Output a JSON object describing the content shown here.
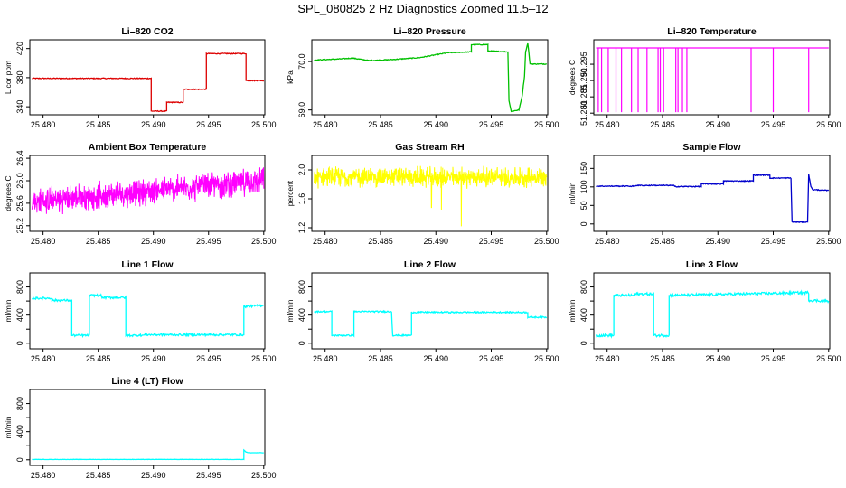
{
  "title": "SPL_080825  2 Hz Diagnostics Zoomed 11.5–12",
  "colors": {
    "red": "#dd0000",
    "green": "#00c000",
    "magenta": "#ff00ff",
    "yellow": "#ffff00",
    "blue": "#0000cc",
    "cyan": "#00ffff"
  },
  "chart_data": [
    {
      "type": "line",
      "title": "Li–820 CO2",
      "ylabel": "Licor ppm",
      "color": "red",
      "xlim": [
        25.4788,
        25.5001
      ],
      "ylim": [
        329,
        432
      ],
      "xticks": [
        25.48,
        25.485,
        25.49,
        25.495,
        25.5
      ],
      "xtick_labels": [
        "25.480",
        "25.485",
        "25.490",
        "25.495",
        "25.500"
      ],
      "yticks": [
        340,
        380,
        420
      ],
      "ytick_labels": [
        "340",
        "380",
        "420"
      ],
      "noise": 0.6,
      "x": [
        25.479,
        25.4898,
        25.4898,
        25.4912,
        25.4912,
        25.4927,
        25.4927,
        25.4948,
        25.4948,
        25.4984,
        25.4984,
        25.5
      ],
      "y": [
        379,
        379,
        334,
        334,
        346,
        346,
        364,
        364,
        413,
        413,
        376,
        376
      ]
    },
    {
      "type": "line",
      "title": "Li–820 Pressure",
      "ylabel": "kPa",
      "color": "green",
      "xlim": [
        25.4788,
        25.5001
      ],
      "ylim": [
        68.9,
        70.45
      ],
      "xticks": [
        25.48,
        25.485,
        25.49,
        25.495,
        25.5
      ],
      "xtick_labels": [
        "25.480",
        "25.485",
        "25.490",
        "25.495",
        "25.500"
      ],
      "yticks": [
        69.0,
        70.0
      ],
      "ytick_labels": [
        "69.0",
        "70.0"
      ],
      "noise": 0.008,
      "x": [
        25.479,
        25.481,
        25.4825,
        25.484,
        25.486,
        25.4885,
        25.4895,
        25.491,
        25.4932,
        25.4932,
        25.4947,
        25.4947,
        25.4965,
        25.4966,
        25.4968,
        25.4975,
        25.4978,
        25.498,
        25.4981,
        25.4983,
        25.4985,
        25.5
      ],
      "y": [
        70.03,
        70.05,
        70.07,
        70.02,
        70.04,
        70.08,
        70.12,
        70.18,
        70.2,
        70.35,
        70.35,
        70.22,
        70.2,
        69.2,
        68.97,
        69.0,
        69.3,
        69.7,
        70.2,
        70.38,
        69.95,
        69.95
      ]
    },
    {
      "type": "line",
      "title": "Li–820 Temperature",
      "ylabel": "degrees C",
      "color": "magenta",
      "xlim": [
        25.4788,
        25.5001
      ],
      "ylim": [
        51.2795,
        51.3025
      ],
      "xticks": [
        25.48,
        25.485,
        25.49,
        25.495,
        25.5
      ],
      "xtick_labels": [
        "25.480",
        "25.485",
        "25.490",
        "25.495",
        "25.500"
      ],
      "yticks": [
        51.28,
        51.285,
        51.29,
        51.295
      ],
      "ytick_labels": [
        "51.280",
        "51.285",
        "51.290",
        "51.295"
      ],
      "noise": 0,
      "x": [
        25.479,
        25.5
      ],
      "y": [
        51.3,
        51.3
      ],
      "spikes_x": [
        25.4792,
        25.4795,
        25.4801,
        25.4808,
        25.4813,
        25.4822,
        25.4828,
        25.4836,
        25.4846,
        25.4848,
        25.4851,
        25.4862,
        25.4864,
        25.4868,
        25.4872,
        25.493,
        25.495,
        25.4982
      ],
      "spike_to": 51.2803
    },
    {
      "type": "line",
      "title": "Ambient Box Temperature",
      "ylabel": "degrees C",
      "color": "magenta",
      "xlim": [
        25.4788,
        25.5001
      ],
      "ylim": [
        25.1,
        26.45
      ],
      "xticks": [
        25.48,
        25.485,
        25.49,
        25.495,
        25.5
      ],
      "xtick_labels": [
        "25.480",
        "25.485",
        "25.490",
        "25.495",
        "25.500"
      ],
      "yticks": [
        25.2,
        25.6,
        26.0,
        26.4
      ],
      "ytick_labels": [
        "25.2",
        "25.6",
        "26.0",
        "26.4"
      ],
      "noise": 0.2,
      "dense": true,
      "x": [
        25.479,
        25.5
      ],
      "y": [
        25.62,
        26.0
      ]
    },
    {
      "type": "line",
      "title": "Gas Stream RH",
      "ylabel": "percent",
      "color": "yellow",
      "xlim": [
        25.4788,
        25.5001
      ],
      "ylim": [
        1.15,
        2.2
      ],
      "xticks": [
        25.48,
        25.485,
        25.49,
        25.495,
        25.5
      ],
      "xtick_labels": [
        "25.480",
        "25.485",
        "25.490",
        "25.495",
        "25.500"
      ],
      "yticks": [
        1.2,
        1.6,
        2.0
      ],
      "ytick_labels": [
        "1.2",
        "1.6",
        "2.0"
      ],
      "noise": 0.12,
      "dense": true,
      "x": [
        25.479,
        25.5
      ],
      "y": [
        1.9,
        1.9
      ],
      "dips": [
        [
          25.4905,
          1.45
        ],
        [
          25.4923,
          1.22
        ],
        [
          25.4896,
          1.48
        ]
      ]
    },
    {
      "type": "line",
      "title": "Sample Flow",
      "ylabel": "ml/min",
      "color": "blue",
      "xlim": [
        25.4788,
        25.5001
      ],
      "ylim": [
        -20,
        185
      ],
      "xticks": [
        25.48,
        25.485,
        25.49,
        25.495,
        25.5
      ],
      "xtick_labels": [
        "25.480",
        "25.485",
        "25.490",
        "25.495",
        "25.500"
      ],
      "yticks": [
        0,
        50,
        100,
        150
      ],
      "ytick_labels": [
        "0",
        "50",
        "100",
        "150"
      ],
      "noise": 1.2,
      "x": [
        25.479,
        25.4825,
        25.4826,
        25.486,
        25.4861,
        25.4885,
        25.4885,
        25.4905,
        25.4905,
        25.4932,
        25.4932,
        25.4947,
        25.4947,
        25.4966,
        25.4967,
        25.4981,
        25.4982,
        25.4984,
        25.4986,
        25.499,
        25.5
      ],
      "y": [
        102,
        102,
        104,
        104,
        101,
        101,
        108,
        108,
        116,
        116,
        132,
        132,
        124,
        124,
        5,
        5,
        135,
        100,
        92,
        92,
        90
      ]
    },
    {
      "type": "line",
      "title": "Line 1 Flow",
      "ylabel": "ml/min",
      "color": "cyan",
      "xlim": [
        25.4788,
        25.5001
      ],
      "ylim": [
        -80,
        1000
      ],
      "xticks": [
        25.48,
        25.485,
        25.49,
        25.495,
        25.5
      ],
      "xtick_labels": [
        "25.480",
        "25.485",
        "25.490",
        "25.495",
        "25.500"
      ],
      "yticks": [
        0,
        200,
        400,
        600,
        800
      ],
      "ytick_labels": [
        "0",
        "400",
        "800"
      ],
      "ytick_label_values": [
        0,
        400,
        800
      ],
      "noise": 15,
      "x": [
        25.479,
        25.4808,
        25.4808,
        25.4826,
        25.4826,
        25.4842,
        25.4842,
        25.4853,
        25.4853,
        25.4875,
        25.4875,
        25.4885,
        25.4885,
        25.4892,
        25.4892,
        25.4982,
        25.4982,
        25.5
      ],
      "y": [
        640,
        640,
        610,
        610,
        110,
        110,
        680,
        680,
        650,
        650,
        110,
        110,
        112,
        112,
        120,
        120,
        520,
        540
      ]
    },
    {
      "type": "line",
      "title": "Line 2 Flow",
      "ylabel": "ml/min",
      "color": "cyan",
      "xlim": [
        25.4788,
        25.5001
      ],
      "ylim": [
        -80,
        1000
      ],
      "xticks": [
        25.48,
        25.485,
        25.49,
        25.495,
        25.5
      ],
      "xtick_labels": [
        "25.480",
        "25.485",
        "25.490",
        "25.495",
        "25.500"
      ],
      "yticks": [
        0,
        200,
        400,
        600,
        800
      ],
      "ytick_labels": [
        "0",
        "400",
        "800"
      ],
      "ytick_label_values": [
        0,
        400,
        800
      ],
      "noise": 10,
      "x": [
        25.479,
        25.4806,
        25.4806,
        25.4826,
        25.4826,
        25.486,
        25.4861,
        25.4878,
        25.4878,
        25.4983,
        25.4983,
        25.5
      ],
      "y": [
        450,
        450,
        110,
        110,
        450,
        450,
        110,
        110,
        440,
        440,
        370,
        370
      ]
    },
    {
      "type": "line",
      "title": "Line 3 Flow",
      "ylabel": "ml/min",
      "color": "cyan",
      "xlim": [
        25.4788,
        25.5001
      ],
      "ylim": [
        -80,
        1000
      ],
      "xticks": [
        25.48,
        25.485,
        25.49,
        25.495,
        25.5
      ],
      "xtick_labels": [
        "25.480",
        "25.485",
        "25.490",
        "25.495",
        "25.500"
      ],
      "yticks": [
        0,
        200,
        400,
        600,
        800
      ],
      "ytick_labels": [
        "0",
        "400",
        "800"
      ],
      "ytick_label_values": [
        0,
        400,
        800
      ],
      "noise": 18,
      "x": [
        25.479,
        25.4806,
        25.4806,
        25.4825,
        25.4825,
        25.4842,
        25.4842,
        25.4856,
        25.4856,
        25.4982,
        25.4982,
        25.5
      ],
      "y": [
        110,
        110,
        680,
        680,
        700,
        700,
        110,
        110,
        680,
        720,
        610,
        600
      ]
    },
    {
      "type": "line",
      "title": "Line 4 (LT) Flow",
      "ylabel": "ml/min",
      "color": "cyan",
      "xlim": [
        25.4788,
        25.5001
      ],
      "ylim": [
        -80,
        1000
      ],
      "xticks": [
        25.48,
        25.485,
        25.49,
        25.495,
        25.5
      ],
      "xtick_labels": [
        "25.480",
        "25.485",
        "25.490",
        "25.495",
        "25.500"
      ],
      "yticks": [
        0,
        200,
        400,
        600,
        800
      ],
      "ytick_labels": [
        "0",
        "400",
        "800"
      ],
      "ytick_label_values": [
        0,
        400,
        800
      ],
      "noise": 2,
      "x": [
        25.479,
        25.4982,
        25.4982,
        25.4984,
        25.4986,
        25.5
      ],
      "y": [
        5,
        5,
        140,
        110,
        100,
        100
      ]
    }
  ]
}
